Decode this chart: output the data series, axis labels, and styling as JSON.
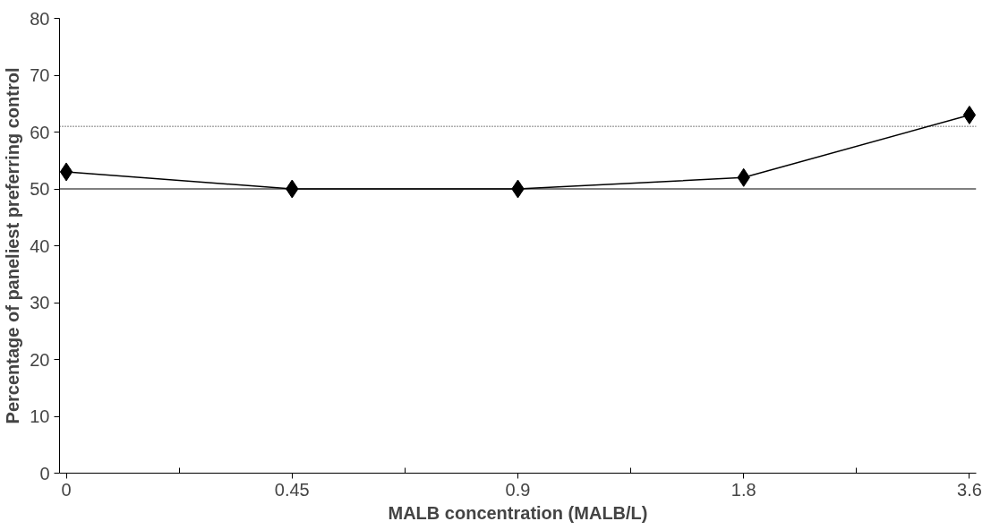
{
  "chart_data": {
    "type": "line",
    "xlabel": "MALB concentration (MALB/L)",
    "ylabel": "Percentage of paneliest preferring control",
    "categories": [
      "0",
      "0.45",
      "0.9",
      "1.8",
      "3.6"
    ],
    "series": [
      {
        "color": "#000000",
        "values": [
          53,
          50,
          50,
          52,
          63
        ]
      }
    ],
    "ylim": [
      0,
      80
    ],
    "yticks": [
      0,
      10,
      20,
      30,
      40,
      50,
      60,
      70,
      80
    ],
    "marker": "diamond",
    "line_style": "solid",
    "grid": false,
    "ref_lines": [
      {
        "axis": "y",
        "value": 50,
        "line_style": "solid",
        "color": "#000000"
      },
      {
        "axis": "y",
        "value": 61,
        "line_style": "dotted",
        "color": "#000000"
      }
    ]
  }
}
